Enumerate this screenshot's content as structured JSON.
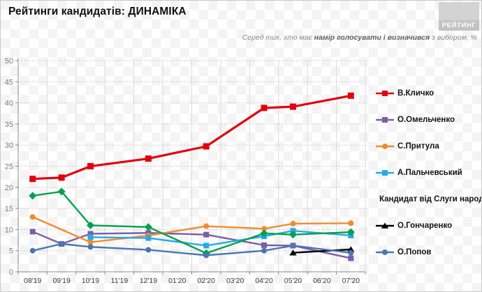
{
  "header": {
    "title": "Рейтинги кандидатів: ДИНАМІКА",
    "logo_text": "РЕЙТИНГ",
    "subtitle_prefix": "Серед тих, хто має ",
    "subtitle_bold": "намір голосувати і визначився",
    "subtitle_suffix": " з вибором, %"
  },
  "chart_data": {
    "type": "line",
    "title": "Рейтинги кандидатів: ДИНАМІКА",
    "subtitle": "Серед тих, хто має намір голосувати і визначився з вибором, %",
    "categories": [
      "08'19",
      "09'19",
      "10'19",
      "11'19",
      "12'19",
      "01'20",
      "02'20",
      "03'20",
      "04'20",
      "05'20",
      "06'20",
      "07'20"
    ],
    "ylim": [
      0,
      50
    ],
    "ytick_step": 5,
    "unit": "%",
    "grid": true,
    "legend_position": "right",
    "series": [
      {
        "name": "В.Кличко",
        "color": "#e3000e",
        "marker": "square",
        "values": [
          22,
          22.3,
          25,
          null,
          26.8,
          null,
          29.7,
          null,
          38.8,
          39.1,
          null,
          41.7
        ]
      },
      {
        "name": "О.Омельченко",
        "color": "#7b5ea7",
        "marker": "square",
        "values": [
          9.5,
          6.6,
          9,
          null,
          9.2,
          null,
          8.8,
          null,
          6.3,
          6.2,
          null,
          3.2
        ]
      },
      {
        "name": "С.Притула",
        "color": "#f08c2e",
        "marker": "circle",
        "values": [
          13,
          null,
          7,
          null,
          8.6,
          null,
          10.8,
          null,
          10.2,
          11.4,
          null,
          11.5
        ]
      },
      {
        "name": "А.Пальчевський",
        "color": "#27a9e1",
        "marker": "square",
        "values": [
          null,
          null,
          8.2,
          null,
          8,
          null,
          6.2,
          null,
          8.4,
          9.7,
          null,
          8.6
        ]
      },
      {
        "name": "Кандидат від Слуги народу",
        "color": "#00a14e",
        "marker": "diamond",
        "values": [
          18,
          19,
          11,
          null,
          10.6,
          null,
          4.4,
          null,
          9.1,
          8.8,
          null,
          9.4
        ]
      },
      {
        "name": "О.Гончаренко",
        "color": "#000000",
        "marker": "triangle",
        "values": [
          null,
          null,
          null,
          null,
          null,
          null,
          null,
          null,
          null,
          4.5,
          null,
          5.3
        ]
      },
      {
        "name": "О.Попов",
        "color": "#4a77b4",
        "marker": "circle",
        "values": [
          5,
          6.6,
          5.9,
          null,
          5.2,
          null,
          3.9,
          null,
          5,
          6.2,
          null,
          4.5
        ]
      }
    ]
  }
}
